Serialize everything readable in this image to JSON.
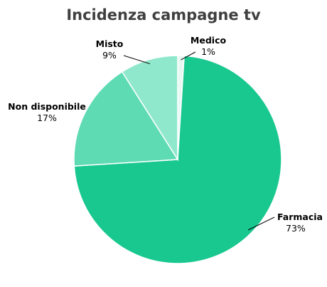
{
  "chart_data": {
    "type": "pie",
    "title": "Incidenza campagne tv",
    "slices": [
      {
        "label": "Medico",
        "percent_label": "1%",
        "value": 1,
        "color": "#e7f8f2"
      },
      {
        "label": "Farmacia",
        "percent_label": "73%",
        "value": 73,
        "color": "#19c88f"
      },
      {
        "label": "Non disponibile",
        "percent_label": "17%",
        "value": 17,
        "color": "#5fdbb3"
      },
      {
        "label": "Misto",
        "percent_label": "9%",
        "value": 9,
        "color": "#90e8cc"
      }
    ],
    "start_angle_deg": 0,
    "direction": "clockwise",
    "legend": "none"
  }
}
